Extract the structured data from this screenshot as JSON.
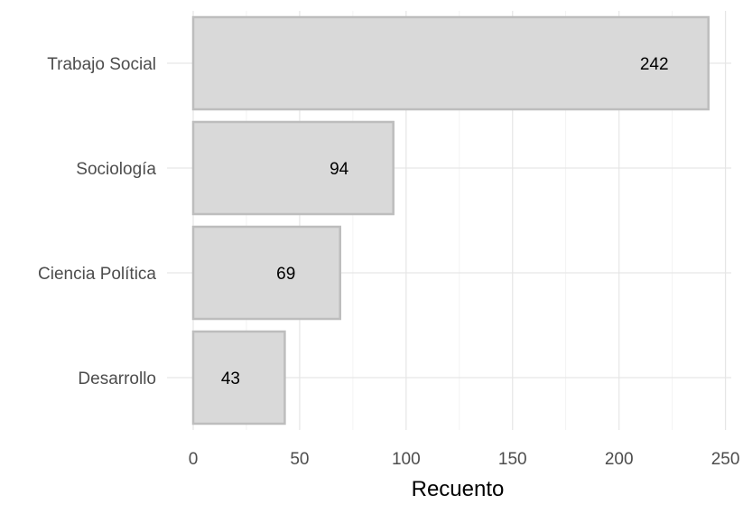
{
  "chart_data": {
    "type": "bar",
    "orientation": "horizontal",
    "categories": [
      "Trabajo Social",
      "Sociología",
      "Ciencia Política",
      "Desarrollo"
    ],
    "values": [
      242,
      94,
      69,
      43
    ],
    "data_labels": [
      "242",
      "94",
      "69",
      "43"
    ],
    "xlabel": "Recuento",
    "ylabel": "",
    "xlim": [
      0,
      250
    ],
    "xticks": [
      0,
      50,
      100,
      150,
      200,
      250
    ],
    "xtick_labels": [
      "0",
      "50",
      "100",
      "150",
      "200",
      "250"
    ],
    "grid": true,
    "legend": "none",
    "colors": {
      "bar_fill": "#d9d9d9",
      "bar_stroke": "#bdbdbd",
      "grid_major": "#e6e6e6",
      "grid_minor": "#f0f0f0",
      "axis_text": "#4d4d4d"
    }
  }
}
